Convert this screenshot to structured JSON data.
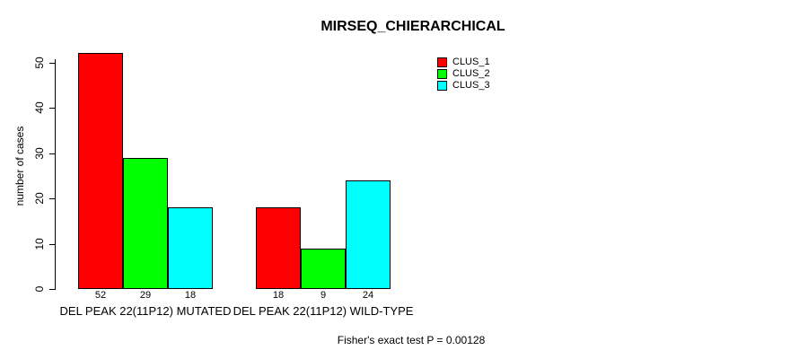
{
  "title": "MIRSEQ_CHIERARCHICAL",
  "chart_data": {
    "type": "bar",
    "title": "MIRSEQ_CHIERARCHICAL",
    "xlabel": "",
    "ylabel": "number of cases",
    "ylim": [
      0,
      52
    ],
    "yticks": [
      0,
      10,
      20,
      30,
      40,
      50
    ],
    "grid": false,
    "legend_position": "top-right-inside",
    "categories": [
      "DEL PEAK 22(11P12) MUTATED",
      "DEL PEAK 22(11P12) WILD-TYPE"
    ],
    "series": [
      {
        "name": "CLUS_1",
        "color": "#ff0000",
        "values": [
          52,
          18
        ]
      },
      {
        "name": "CLUS_2",
        "color": "#00ff00",
        "values": [
          29,
          9
        ]
      },
      {
        "name": "CLUS_3",
        "color": "#00ffff",
        "values": [
          18,
          24
        ]
      }
    ],
    "bar_value_labels": [
      [
        "52",
        "29",
        "18"
      ],
      [
        "18",
        "9",
        "24"
      ]
    ],
    "annotation": "Fisher's exact test P = 0.00128",
    "bar_border_color": "#000000",
    "axis_color": "#000000",
    "background_color": "#ffffff"
  }
}
